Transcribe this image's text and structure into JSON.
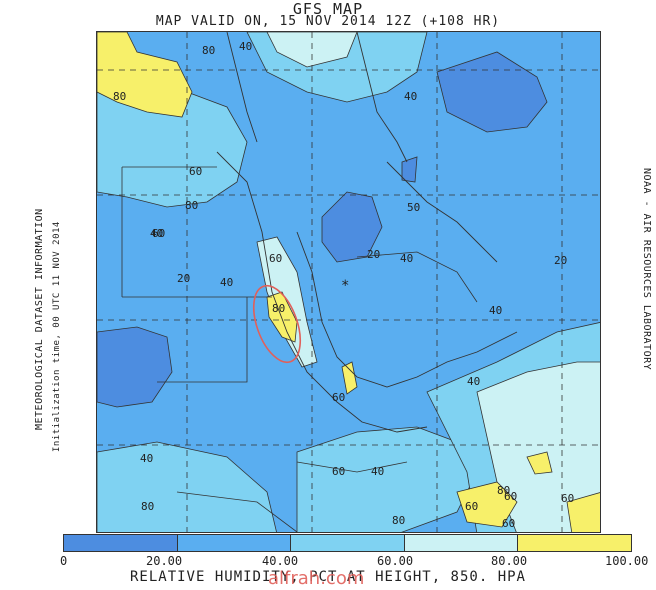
{
  "header": {
    "title": "GFS MAP",
    "valid": "MAP VALID ON, 15 NOV 2014 12Z (+108 HR)"
  },
  "side": {
    "left_label": "METEOROLOGICAL DATASET INFORMATION",
    "init_label": "Initialization time, 00 UTC 11 NOV 2014",
    "right_label": "NOAA - AIR RESOURCES LABORATORY"
  },
  "colorbar": {
    "colors": [
      "#4d8de0",
      "#5aaef0",
      "#7fd2f2",
      "#ccf2f4",
      "#f7f06a"
    ],
    "ticks": [
      "0",
      "20.00",
      "40.00",
      "60.00",
      "80.00",
      "100.00"
    ]
  },
  "caption": "RELATIVE HUMIDITY, PCT AT HEIGHT, 850. HPA",
  "watermark": "alfrah.com",
  "contour_labels": [
    "80",
    "40",
    "80",
    "40",
    "60",
    "80",
    "60",
    "50",
    "40",
    "20",
    "40",
    "60",
    "40",
    "80",
    "20",
    "40",
    "20",
    "60",
    "40",
    "60",
    "40",
    "60",
    "40",
    "60",
    "80",
    "80",
    "60",
    "60",
    "80"
  ],
  "marker": "*"
}
